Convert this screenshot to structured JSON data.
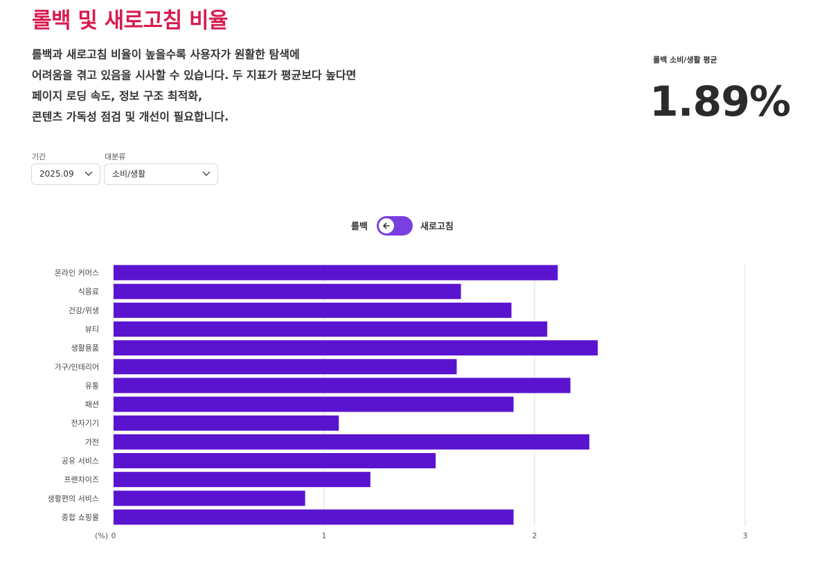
{
  "page": {
    "title": "롤백 및 새로고침 비율",
    "description": [
      "롤백과 새로고침 비율이 높을수록 사용자가 원활한 탐색에",
      "어려움을 겪고 있음을 시사할 수 있습니다. 두 지표가 평균보다 높다면",
      "페이지 로딩 속도, 정보 구조 최적화,",
      "콘텐츠 가독성 점검 및 개선이 필요합니다."
    ]
  },
  "kpi": {
    "label": "롤백 소비/생활 평균",
    "value": "1.89%"
  },
  "filters": {
    "period": {
      "label": "기간",
      "value": "2025.09"
    },
    "category": {
      "label": "대분류",
      "value": "소비/생활"
    }
  },
  "toggle": {
    "left_label": "롤백",
    "right_label": "새로고침",
    "selected": "롤백",
    "icon": "arrow-left-icon"
  },
  "colors": {
    "title": "#d81b4f",
    "bar": "#5a14d0",
    "toggle": "#7a3fe0",
    "grid": "#dddddd"
  },
  "chart_data": {
    "type": "bar",
    "orientation": "horizontal",
    "categories": [
      "온라인 커머스",
      "식음료",
      "건강/위생",
      "뷰티",
      "생활용품",
      "가구/인테리어",
      "유통",
      "패션",
      "전자기기",
      "가전",
      "공유 서비스",
      "프랜차이즈",
      "생활편의 서비스",
      "종합 쇼핑몰"
    ],
    "values": [
      2.11,
      1.65,
      1.89,
      2.06,
      2.3,
      1.63,
      2.17,
      1.9,
      1.07,
      2.26,
      1.53,
      1.22,
      0.91,
      1.9
    ],
    "xlim": [
      0,
      3
    ],
    "xticks": [
      "0",
      "1",
      "2",
      "3"
    ],
    "unit_label": "(%)",
    "grid": true
  }
}
